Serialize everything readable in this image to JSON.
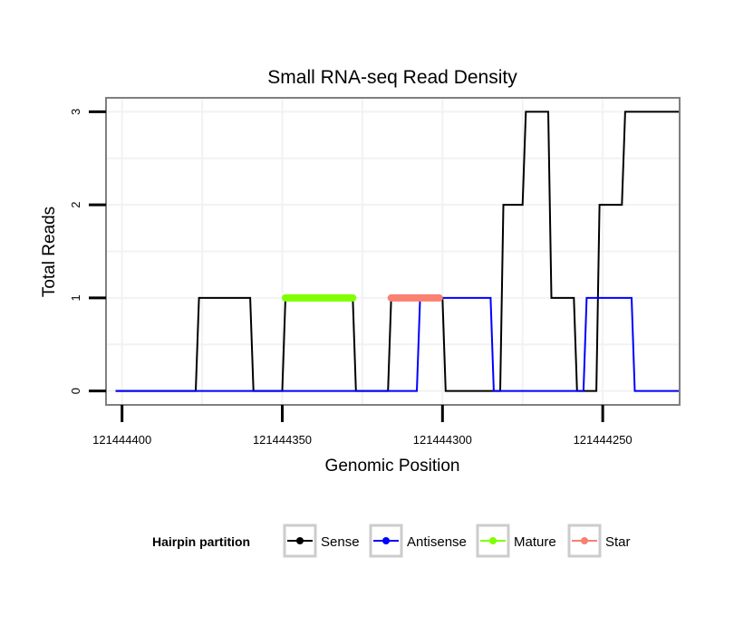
{
  "colors": {
    "sense": "#000000",
    "antisense": "#0000ff",
    "mature": "#7fff00",
    "star": "#fa8072",
    "panel_border": "#7f7f7f",
    "grid": "#f2f2f2",
    "legend_key_border": "#cccccc"
  },
  "chart_data": {
    "type": "line",
    "title": "Small RNA-seq Read Density",
    "xlabel": "Genomic Position",
    "ylabel": "Total Reads",
    "xlim": [
      121444405,
      121444226
    ],
    "ylim": [
      -0.15,
      3.15
    ],
    "x_reversed": true,
    "xticks": [
      121444400,
      121444350,
      121444300,
      121444250
    ],
    "xtick_labels": [
      "121444400",
      "121444350",
      "121444300",
      "121444250"
    ],
    "yticks": [
      0,
      1,
      2,
      3
    ],
    "ytick_labels": [
      "0",
      "1",
      "2",
      "3"
    ],
    "grid": true,
    "series": [
      {
        "name": "Sense",
        "points": [
          [
            121444402,
            0
          ],
          [
            121444377,
            0
          ],
          [
            121444376,
            1
          ],
          [
            121444360,
            1
          ],
          [
            121444359,
            0
          ],
          [
            121444350,
            0
          ],
          [
            121444349,
            1
          ],
          [
            121444328,
            1
          ],
          [
            121444327,
            0
          ],
          [
            121444317,
            0
          ],
          [
            121444316,
            1
          ],
          [
            121444300,
            1
          ],
          [
            121444299,
            0
          ],
          [
            121444282,
            0
          ],
          [
            121444281,
            2
          ],
          [
            121444275,
            2
          ],
          [
            121444274,
            3
          ],
          [
            121444267,
            3
          ],
          [
            121444266,
            1
          ],
          [
            121444259,
            1
          ],
          [
            121444258,
            0
          ],
          [
            121444252,
            0
          ],
          [
            121444251,
            2
          ],
          [
            121444244,
            2
          ],
          [
            121444243,
            3
          ],
          [
            121444226,
            3
          ]
        ]
      },
      {
        "name": "Antisense",
        "points": [
          [
            121444402,
            0
          ],
          [
            121444308,
            0
          ],
          [
            121444307,
            1
          ],
          [
            121444285,
            1
          ],
          [
            121444284,
            0
          ],
          [
            121444256,
            0
          ],
          [
            121444255,
            1
          ],
          [
            121444241,
            1
          ],
          [
            121444240,
            0
          ],
          [
            121444226,
            0
          ]
        ]
      },
      {
        "name": "Mature",
        "points": [
          [
            121444349,
            1
          ],
          [
            121444328,
            1
          ]
        ]
      },
      {
        "name": "Star",
        "points": [
          [
            121444316,
            1
          ],
          [
            121444301,
            1
          ]
        ]
      }
    ],
    "legend": {
      "title": "Hairpin partition",
      "position": "bottom",
      "entries": [
        "Sense",
        "Antisense",
        "Mature",
        "Star"
      ]
    }
  }
}
